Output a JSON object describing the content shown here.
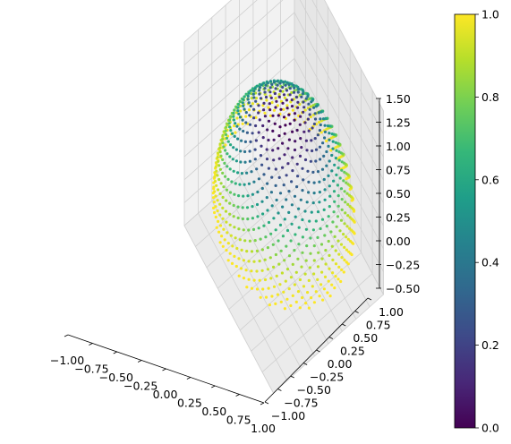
{
  "chart_data": {
    "type": "scatter",
    "projection": "3d",
    "shape": "hemisphere (z >= 0) of a unit sphere, point cloud colored by |z| depth from pole",
    "colormap": "viridis",
    "colorbar": {
      "range": [
        0,
        1
      ],
      "ticks": [
        0.0,
        0.2,
        0.4,
        0.6,
        0.8,
        1.0
      ],
      "tick_labels": [
        "0.0",
        "0.2",
        "0.4",
        "0.6",
        "0.8",
        "1.0"
      ]
    },
    "axes": {
      "x": {
        "range": [
          -1.0,
          1.0
        ],
        "tick_labels": [
          "−1.00",
          "−0.75",
          "−0.50",
          "−0.25",
          "0.00",
          "0.25",
          "0.50",
          "0.75",
          "1.00"
        ]
      },
      "y": {
        "range": [
          -1.0,
          1.0
        ],
        "tick_labels": [
          "−1.00",
          "−0.75",
          "−0.50",
          "−0.25",
          "0.00",
          "0.25",
          "0.50",
          "0.75",
          "1.00"
        ]
      },
      "z": {
        "range": [
          -0.5,
          1.5
        ],
        "tick_labels": [
          "−0.50",
          "−0.25",
          "0.00",
          "0.25",
          "0.50",
          "0.75",
          "1.00",
          "1.25",
          "1.50"
        ]
      }
    },
    "grid": true,
    "title": "",
    "xlabel": "",
    "ylabel": "",
    "zlabel": ""
  }
}
